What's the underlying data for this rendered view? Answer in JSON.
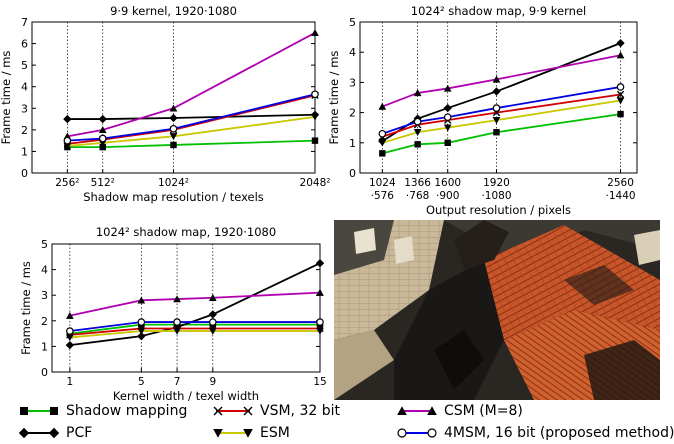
{
  "chart_data": [
    {
      "type": "line",
      "title": "9·9 kernel, 1920·1080",
      "xlabel": "Shadow map resolution / texels",
      "ylabel": "Frame time / ms",
      "xlim": [
        0,
        2048
      ],
      "ylim": [
        0,
        7
      ],
      "x": [
        256,
        512,
        1024,
        2048
      ],
      "x_tick_labels": [
        "256²",
        "512²",
        "1024²",
        "2048²"
      ],
      "y_ticks": [
        0,
        1,
        2,
        3,
        4,
        5,
        6,
        7
      ],
      "grid": "vertical dotted at x ticks",
      "series": [
        {
          "name": "Shadow mapping",
          "values": [
            1.2,
            1.2,
            1.3,
            1.5
          ]
        },
        {
          "name": "PCF",
          "values": [
            2.5,
            2.5,
            2.55,
            2.7
          ]
        },
        {
          "name": "VSM, 32 bit",
          "values": [
            1.35,
            1.55,
            2.0,
            3.6
          ]
        },
        {
          "name": "ESM",
          "values": [
            1.25,
            1.4,
            1.7,
            2.6
          ]
        },
        {
          "name": "CSM (M=8)",
          "values": [
            1.7,
            2.0,
            3.0,
            6.5
          ]
        },
        {
          "name": "4MSM, 16 bit (proposed method)",
          "values": [
            1.5,
            1.6,
            2.05,
            3.65
          ]
        }
      ]
    },
    {
      "type": "line",
      "title": "1024² shadow map, 9·9 kernel",
      "xlabel": "Output resolution / pixels",
      "ylabel": "Frame time / ms",
      "xlim": [
        0.3,
        3.9
      ],
      "ylim": [
        0,
        5
      ],
      "x": [
        0.59,
        1.049,
        1.44,
        2.074,
        3.686
      ],
      "x_tick_labels": [
        [
          "1024",
          "·576"
        ],
        [
          "1366",
          "·768"
        ],
        [
          "1600",
          "·900"
        ],
        [
          "1920",
          "·1080"
        ],
        [
          "2560",
          "·1440"
        ]
      ],
      "y_ticks": [
        0,
        1,
        2,
        3,
        4,
        5
      ],
      "grid": "vertical dotted at x ticks",
      "series": [
        {
          "name": "Shadow mapping",
          "values": [
            0.65,
            0.95,
            1.0,
            1.35,
            1.95
          ]
        },
        {
          "name": "PCF",
          "values": [
            1.05,
            1.8,
            2.15,
            2.7,
            4.3
          ]
        },
        {
          "name": "VSM, 32 bit",
          "values": [
            1.2,
            1.6,
            1.75,
            2.0,
            2.6
          ]
        },
        {
          "name": "ESM",
          "values": [
            1.0,
            1.35,
            1.5,
            1.75,
            2.4
          ]
        },
        {
          "name": "CSM (M=8)",
          "values": [
            2.2,
            2.65,
            2.8,
            3.1,
            3.9
          ]
        },
        {
          "name": "4MSM, 16 bit (proposed method)",
          "values": [
            1.3,
            1.7,
            1.85,
            2.15,
            2.85
          ]
        }
      ]
    },
    {
      "type": "line",
      "title": "1024² shadow map, 1920·1080",
      "xlabel": "Kernel width / texel width",
      "ylabel": "Frame time / ms",
      "xlim": [
        0,
        15
      ],
      "ylim": [
        0,
        5
      ],
      "x": [
        1,
        5,
        7,
        9,
        15
      ],
      "x_tick_labels": [
        "1",
        "5",
        "7",
        "9",
        "15"
      ],
      "y_ticks": [
        0,
        1,
        2,
        3,
        4,
        5
      ],
      "grid": "vertical dotted at x ticks",
      "series": [
        {
          "name": "Shadow mapping",
          "values": [
            1.5,
            1.85,
            1.85,
            1.85,
            1.85
          ]
        },
        {
          "name": "PCF",
          "values": [
            1.05,
            1.4,
            1.75,
            2.25,
            4.25
          ]
        },
        {
          "name": "VSM, 32 bit",
          "values": [
            1.45,
            1.7,
            1.7,
            1.7,
            1.7
          ]
        },
        {
          "name": "ESM",
          "values": [
            1.35,
            1.6,
            1.6,
            1.6,
            1.6
          ]
        },
        {
          "name": "CSM (M=8)",
          "values": [
            2.2,
            2.8,
            2.85,
            2.9,
            3.1
          ]
        },
        {
          "name": "4MSM, 16 bit (proposed method)",
          "values": [
            1.6,
            1.95,
            1.95,
            1.95,
            1.95
          ]
        }
      ]
    }
  ],
  "series_styles": [
    {
      "color": "#00c000",
      "marker": "square"
    },
    {
      "color": "#000000",
      "marker": "diamond"
    },
    {
      "color": "#d00000",
      "marker": "x"
    },
    {
      "color": "#c8c800",
      "marker": "triangle-down"
    },
    {
      "color": "#b000b0",
      "marker": "triangle-up"
    },
    {
      "color": "#0000e0",
      "marker": "circle-open"
    }
  ],
  "legend": {
    "placement": "bottom",
    "items": [
      {
        "label": "Shadow mapping"
      },
      {
        "label": "PCF"
      },
      {
        "label": "VSM, 32 bit"
      },
      {
        "label": "ESM"
      },
      {
        "label": "CSM (M=8)"
      },
      {
        "label": "4MSM, 16 bit (proposed method)"
      }
    ]
  },
  "photo": {
    "subject": "rendered medieval town scene with orange tiled roofs and shadows"
  }
}
